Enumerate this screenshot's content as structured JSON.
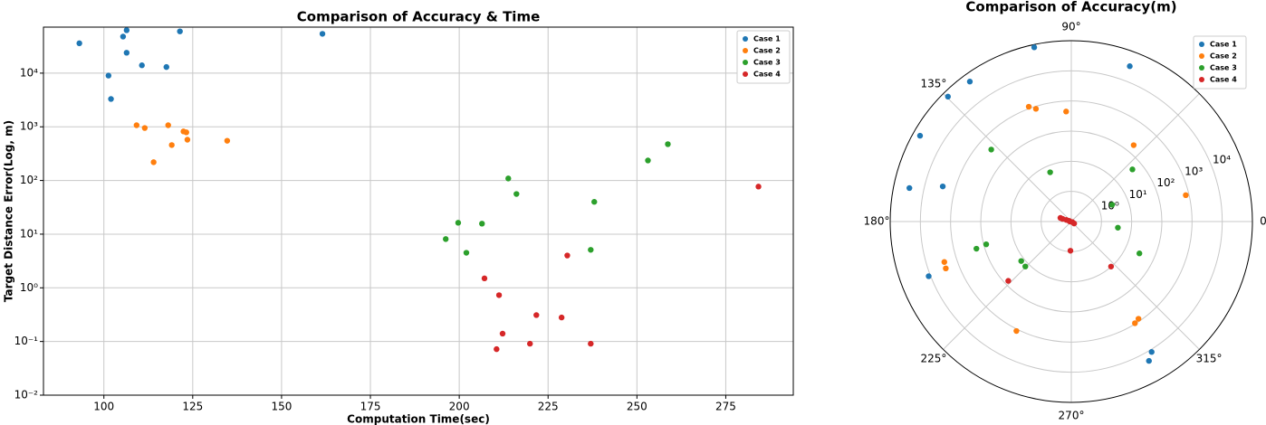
{
  "chart_data": [
    {
      "type": "scatter",
      "title": "Comparison of Accuracy & Time",
      "xlabel": "Computation Time(sec)",
      "ylabel": "Target Distance Error(Log, m)",
      "xlim": [
        83,
        294
      ],
      "ylim": [
        0.01,
        72000
      ],
      "yscale": "log",
      "grid": true,
      "legend": "upper right",
      "xticks": [
        100,
        125,
        150,
        175,
        200,
        225,
        250,
        275
      ],
      "yticks": [
        {
          "value": 0.01,
          "label": "10⁻²"
        },
        {
          "value": 0.1,
          "label": "10⁻¹"
        },
        {
          "value": 1,
          "label": "10⁰"
        },
        {
          "value": 10,
          "label": "10¹"
        },
        {
          "value": 100,
          "label": "10²"
        },
        {
          "value": 1000,
          "label": "10³"
        },
        {
          "value": 10000,
          "label": "10⁴"
        }
      ],
      "series": [
        {
          "name": "Case 1",
          "color": "#1f77b4",
          "x": [
            93.1,
            106.4,
            105.4,
            106.4,
            101.3,
            102.0,
            110.7,
            117.6,
            121.4,
            161.5
          ],
          "values": [
            36000,
            63000,
            48000,
            24000,
            9000,
            3300,
            14000,
            13000,
            60000,
            54000
          ]
        },
        {
          "name": "Case 2",
          "color": "#ff7f0e",
          "x": [
            109.2,
            111.5,
            118.1,
            122.4,
            123.2,
            123.5,
            119.1,
            114.0,
            134.7
          ],
          "values": [
            1070,
            950,
            1070,
            820,
            790,
            575,
            457,
            219,
            550
          ]
        },
        {
          "name": "Case 3",
          "color": "#2ca02c",
          "x": [
            196.2,
            199.7,
            202.0,
            206.4,
            213.8,
            216.1,
            238.0,
            237.0,
            253.1,
            258.7
          ],
          "values": [
            8.1,
            16.3,
            4.5,
            15.7,
            109,
            56,
            40,
            5.1,
            236,
            475
          ]
        },
        {
          "name": "Case 4",
          "color": "#d62728",
          "x": [
            207.1,
            211.2,
            210.5,
            212.2,
            219.9,
            221.7,
            230.4,
            228.8,
            237.0,
            284.2
          ],
          "values": [
            1.5,
            0.73,
            0.072,
            0.14,
            0.091,
            0.31,
            4.0,
            0.28,
            0.091,
            77
          ]
        }
      ]
    },
    {
      "type": "polar",
      "title": "Comparison of Accuracy(m)",
      "rlim": [
        0.1,
        100000
      ],
      "rscale": "log",
      "grid": true,
      "legend": "upper right",
      "thetaticks": [
        {
          "value": 0,
          "label": "0°"
        },
        {
          "value": 45,
          "label": "45°"
        },
        {
          "value": 90,
          "label": "90°"
        },
        {
          "value": 135,
          "label": "135°"
        },
        {
          "value": 180,
          "label": "180°"
        },
        {
          "value": 225,
          "label": "225°"
        },
        {
          "value": 270,
          "label": "270°"
        },
        {
          "value": 315,
          "label": "315°"
        }
      ],
      "rticks": [
        {
          "value": 1,
          "label": "10⁰"
        },
        {
          "value": 10,
          "label": "10¹"
        },
        {
          "value": 100,
          "label": "10²"
        },
        {
          "value": 1000,
          "label": "10³"
        },
        {
          "value": 10000,
          "label": "10⁴"
        }
      ],
      "series": [
        {
          "name": "Case 1",
          "color": "#1f77b4",
          "theta": [
            102,
            69.4,
            125.9,
            134.6,
            150.4,
            168.3,
            164.7,
            201,
            301.6,
            299.1
          ],
          "values": [
            81000,
            32000,
            54000,
            66000,
            58000,
            30000,
            2600,
            11500,
            12000,
            19500
          ]
        },
        {
          "name": "Case 2",
          "color": "#ff7f0e",
          "theta": [
            110.3,
            107.4,
            92.7,
            50.8,
            13,
            197.7,
            200.5,
            243.4,
            304.6,
            302
          ],
          "values": [
            1150,
            830,
            450,
            186,
            780,
            2600,
            2750,
            1150,
            830,
            950
          ]
        },
        {
          "name": "Case 3",
          "color": "#2ca02c",
          "theta": [
            138,
            113.2,
            40.5,
            22.4,
            352.5,
            334.9,
            195,
            196,
            218.3,
            224.4
          ],
          "values": [
            370,
            6.0,
            46,
            2.9,
            3.6,
            31,
            83,
            186,
            13,
            13.5
          ]
        },
        {
          "name": "Case 4",
          "color": "#d62728",
          "theta": [
            161.6,
            161.6,
            180,
            333,
            162,
            326,
            223.3,
            311.4,
            268.3,
            163
          ],
          "values": [
            0.24,
            0.15,
            0.11,
            0.11,
            0.12,
            0.13,
            74,
            9.8,
            0.93,
            0.2
          ]
        }
      ]
    }
  ]
}
